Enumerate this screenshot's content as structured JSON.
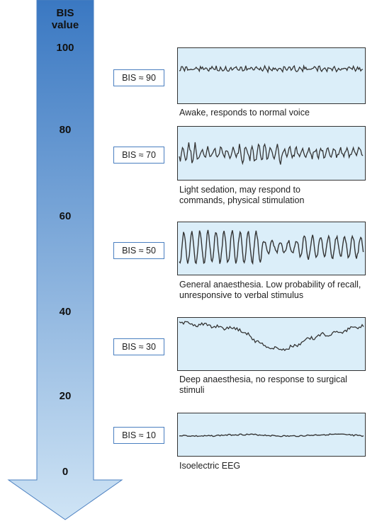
{
  "axis": {
    "title_line1": "BIS",
    "title_line2": "value",
    "ticks": [
      "100",
      "80",
      "60",
      "40",
      "20",
      "0"
    ]
  },
  "levels": [
    {
      "label": "BIS ≈ 90",
      "caption": "Awake, responds to normal voice"
    },
    {
      "label": "BIS ≈ 70",
      "caption": "Light sedation, may respond to commands, physical stimulation"
    },
    {
      "label": "BIS ≈ 50",
      "caption": "General anaesthesia. Low probability of recall, unresponsive to verbal stimulus"
    },
    {
      "label": "BIS ≈ 30",
      "caption": "Deep anaesthesia, no response to surgical stimuli"
    },
    {
      "label": "BIS ≈ 10",
      "caption": "Isoelectric EEG"
    }
  ],
  "colors": {
    "arrow_top": "#3a78c2",
    "arrow_bottom": "#cfe4f5",
    "panel_bg": "#dbeef9",
    "trace": "#333333",
    "label_border": "#4a7fc0"
  }
}
